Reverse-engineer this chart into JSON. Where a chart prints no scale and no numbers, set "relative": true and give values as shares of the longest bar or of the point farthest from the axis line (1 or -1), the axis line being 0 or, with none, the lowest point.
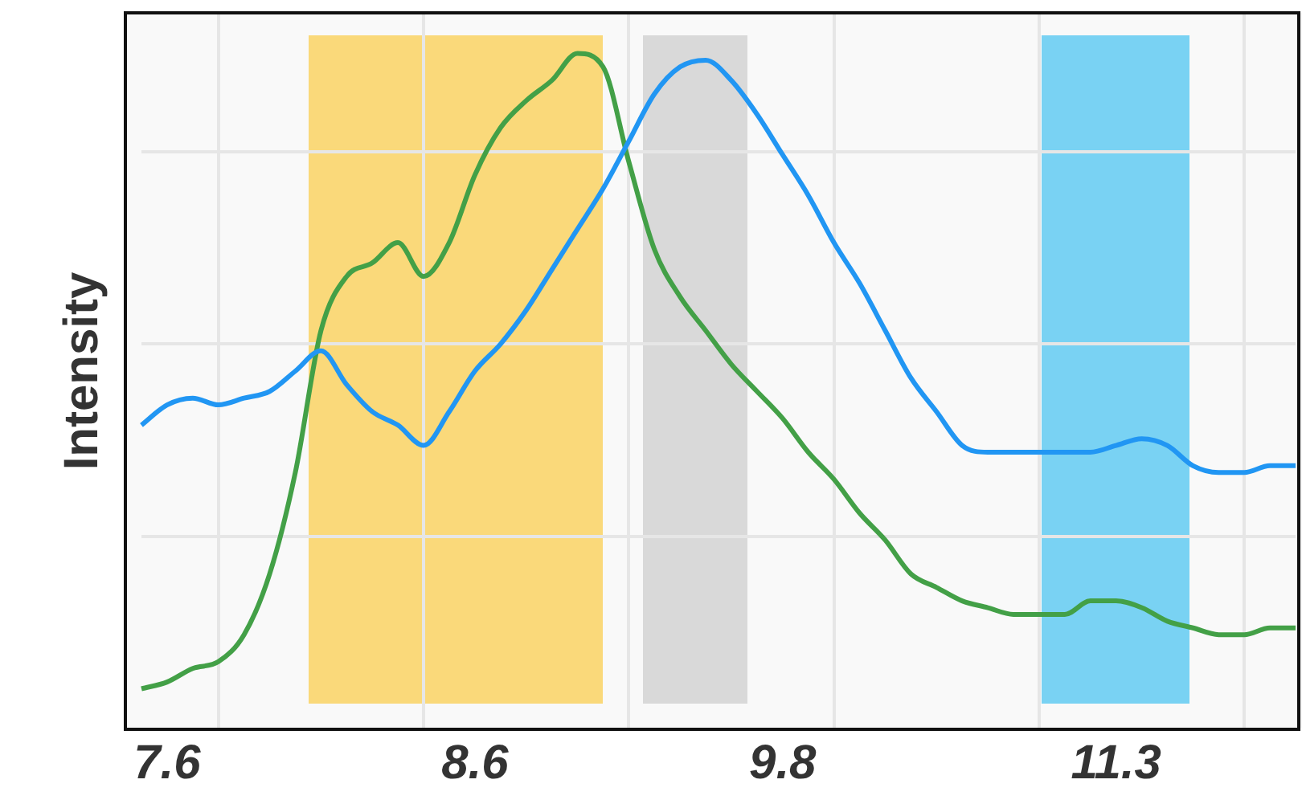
{
  "chart_data": {
    "type": "line",
    "ylabel": "Intensity",
    "relative": true,
    "grid": true,
    "legend": false,
    "marker": "none",
    "line_style": "solid",
    "categories": [
      null,
      "7.6",
      null,
      null,
      null,
      null,
      null,
      null,
      null,
      null,
      null,
      null,
      null,
      "8.6",
      null,
      null,
      null,
      null,
      null,
      null,
      null,
      null,
      null,
      null,
      null,
      "9.8",
      null,
      null,
      null,
      null,
      null,
      null,
      null,
      null,
      null,
      null,
      null,
      null,
      "11.3",
      null,
      null,
      null,
      null,
      null,
      null,
      null
    ],
    "series": [
      {
        "color": "#2196f3",
        "values": [
          0.45,
          0.48,
          0.49,
          0.48,
          0.49,
          0.5,
          0.53,
          0.56,
          0.51,
          0.47,
          0.45,
          0.42,
          0.47,
          0.53,
          0.57,
          0.62,
          0.68,
          0.74,
          0.8,
          0.87,
          0.94,
          0.98,
          0.99,
          0.96,
          0.91,
          0.85,
          0.79,
          0.72,
          0.66,
          0.59,
          0.52,
          0.47,
          0.42,
          0.41,
          0.41,
          0.41,
          0.41,
          0.41,
          0.42,
          0.43,
          0.42,
          0.39,
          0.38,
          0.38,
          0.39,
          0.39
        ]
      },
      {
        "color": "#43a047",
        "values": [
          0.06,
          0.07,
          0.09,
          0.1,
          0.14,
          0.23,
          0.38,
          0.59,
          0.67,
          0.69,
          0.72,
          0.67,
          0.72,
          0.82,
          0.89,
          0.93,
          0.96,
          1.0,
          0.98,
          0.84,
          0.71,
          0.64,
          0.59,
          0.54,
          0.5,
          0.46,
          0.41,
          0.37,
          0.32,
          0.28,
          0.23,
          0.21,
          0.19,
          0.18,
          0.17,
          0.17,
          0.17,
          0.19,
          0.19,
          0.18,
          0.16,
          0.15,
          0.14,
          0.14,
          0.15,
          0.15
        ]
      }
    ]
  }
}
